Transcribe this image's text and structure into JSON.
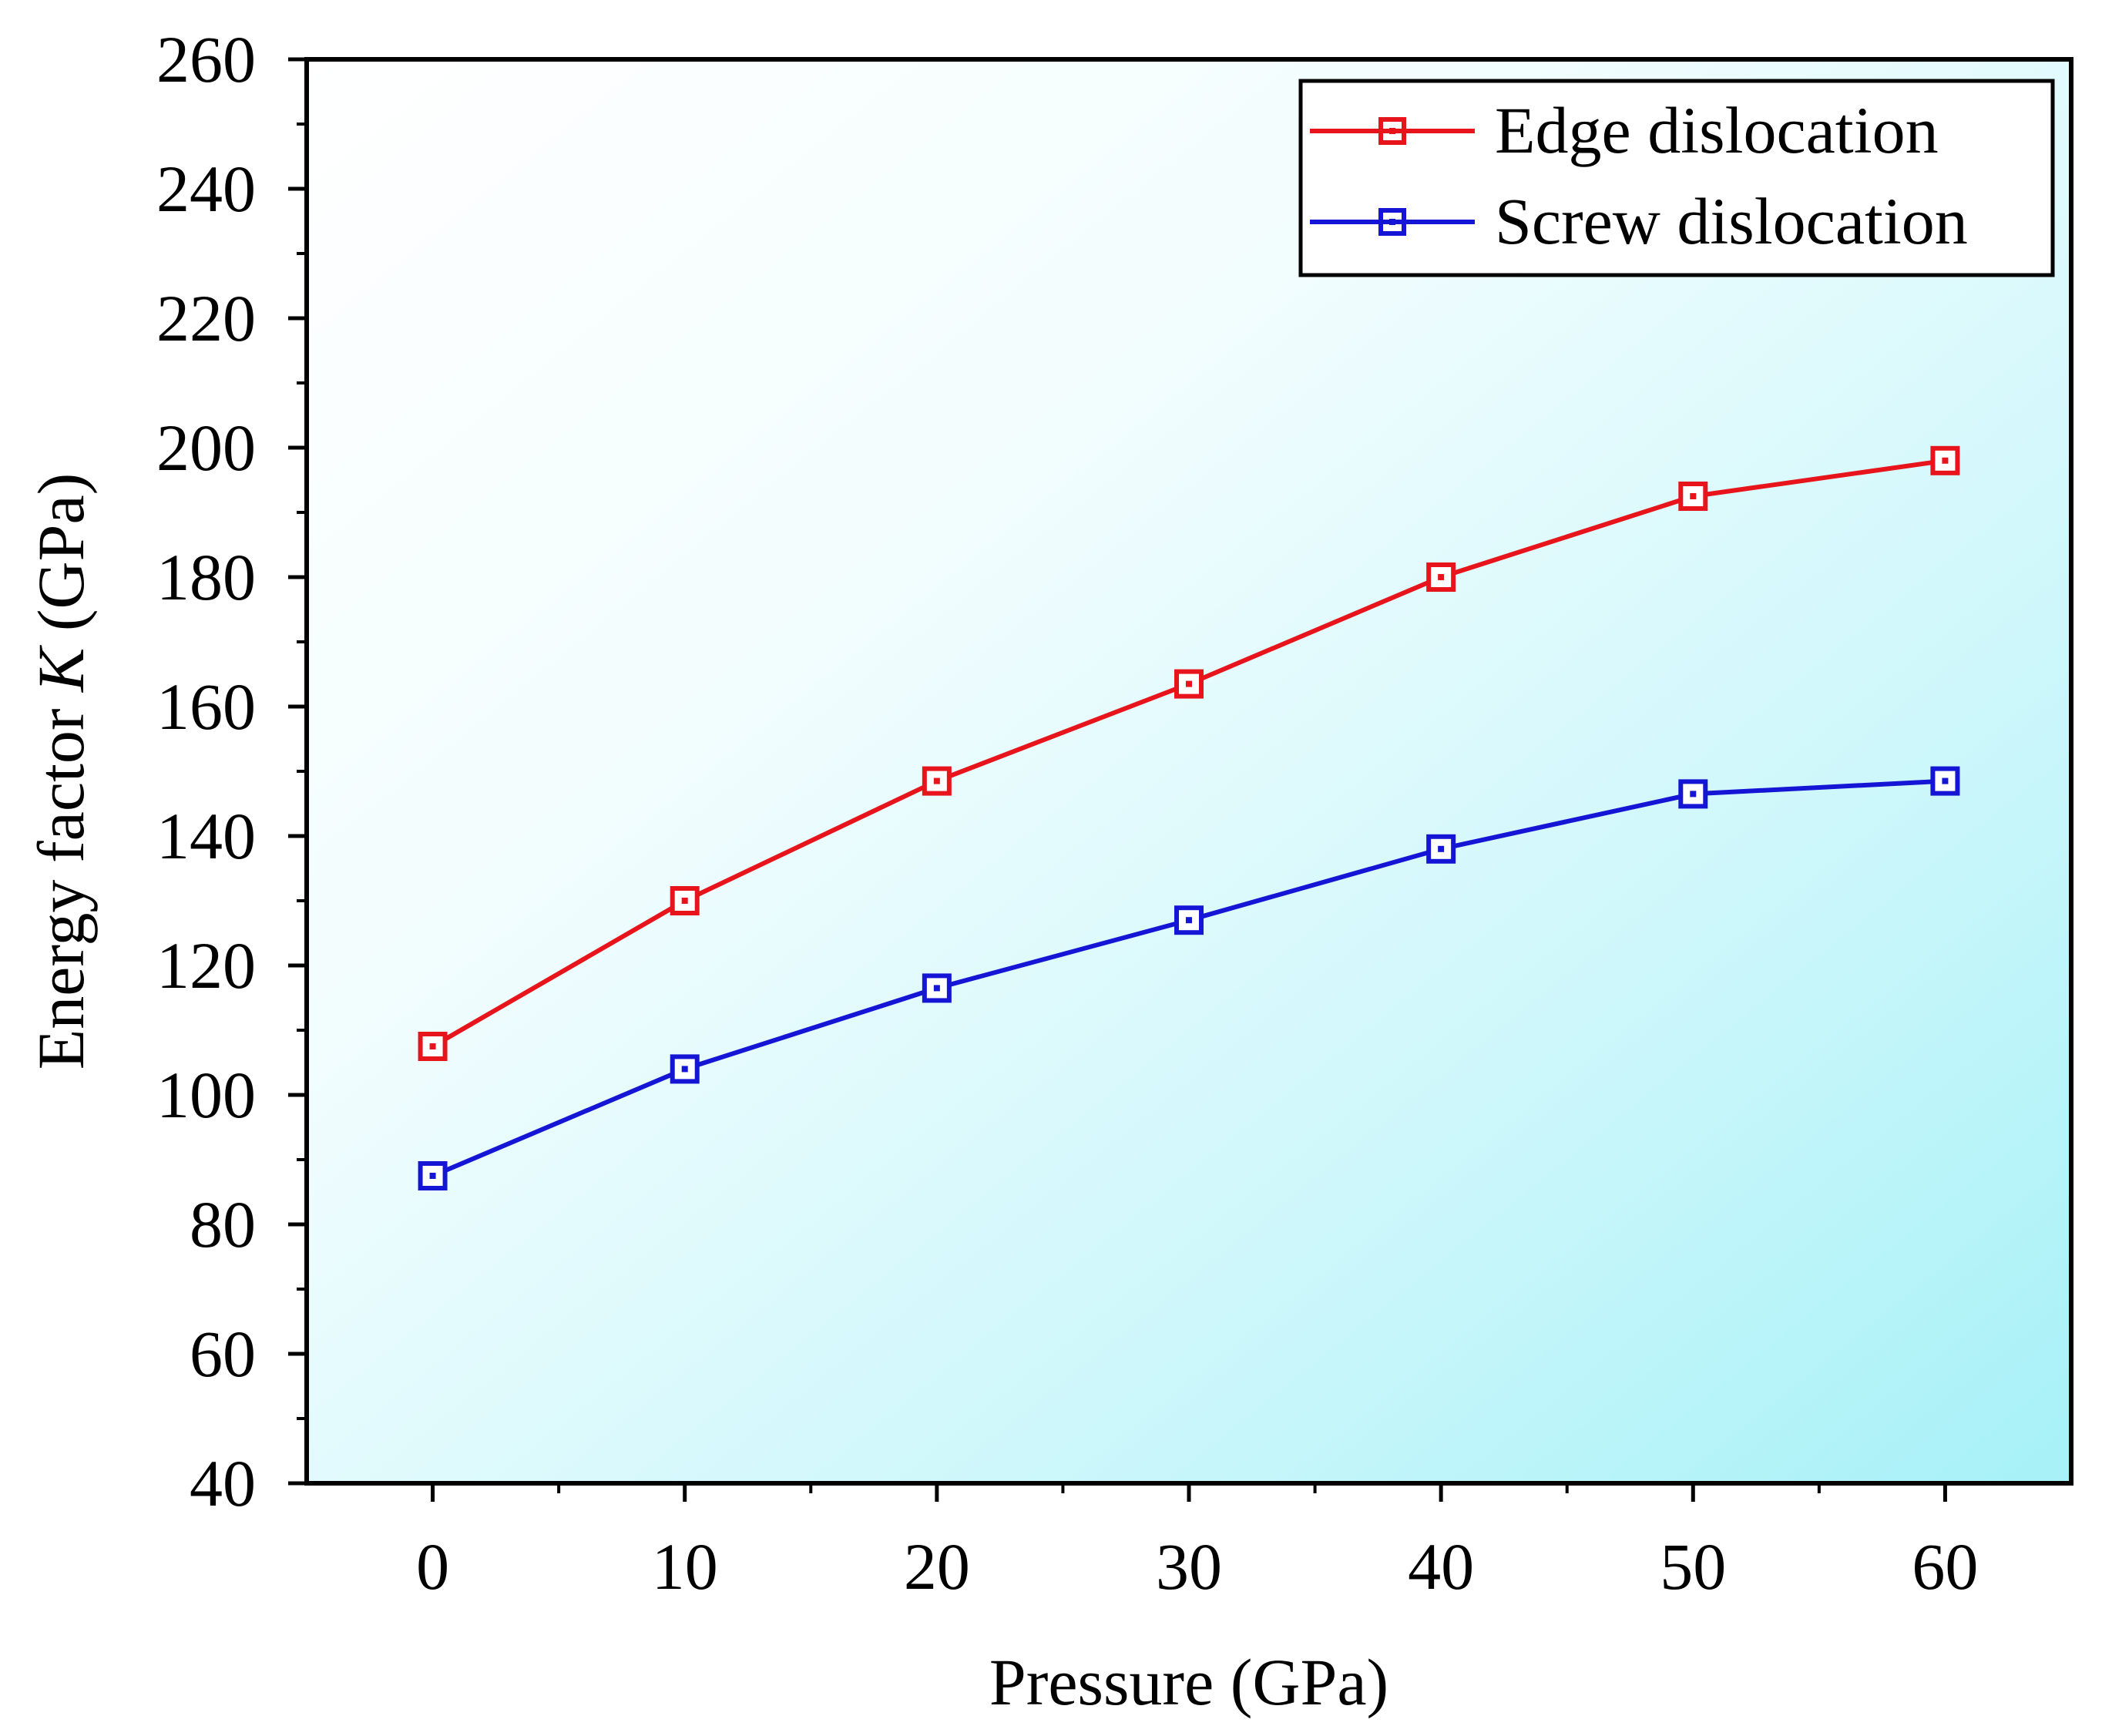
{
  "chart_data": {
    "type": "line",
    "title": "",
    "xlabel": "Pressure (GPa)",
    "ylabel_prefix": "Energy factor ",
    "ylabel_var": "K",
    "ylabel_suffix": " (GPa)",
    "xlim": [
      -5,
      65
    ],
    "ylim": [
      40,
      260
    ],
    "xticks": [
      0,
      10,
      20,
      30,
      40,
      50,
      60
    ],
    "xtick_labels": [
      "0",
      "10",
      "20",
      "30",
      "40",
      "50",
      "60"
    ],
    "yticks": [
      40,
      60,
      80,
      100,
      120,
      140,
      160,
      180,
      200,
      220,
      240,
      260
    ],
    "ytick_labels": [
      "40",
      "60",
      "80",
      "100",
      "120",
      "140",
      "160",
      "180",
      "200",
      "220",
      "240",
      "260"
    ],
    "grid": false,
    "legend_position": "top-right",
    "background": "gradient white to light cyan",
    "x": [
      0,
      10,
      20,
      30,
      40,
      50,
      60
    ],
    "series": [
      {
        "name": "Edge dislocation",
        "color": "#e8141c",
        "marker": "square",
        "values": [
          107.5,
          130.0,
          148.5,
          163.5,
          180.0,
          192.5,
          198.0
        ]
      },
      {
        "name": "Screw dislocation",
        "color": "#1515d6",
        "marker": "square",
        "values": [
          87.5,
          104.0,
          116.5,
          127.0,
          138.0,
          146.5,
          148.5
        ]
      }
    ]
  }
}
